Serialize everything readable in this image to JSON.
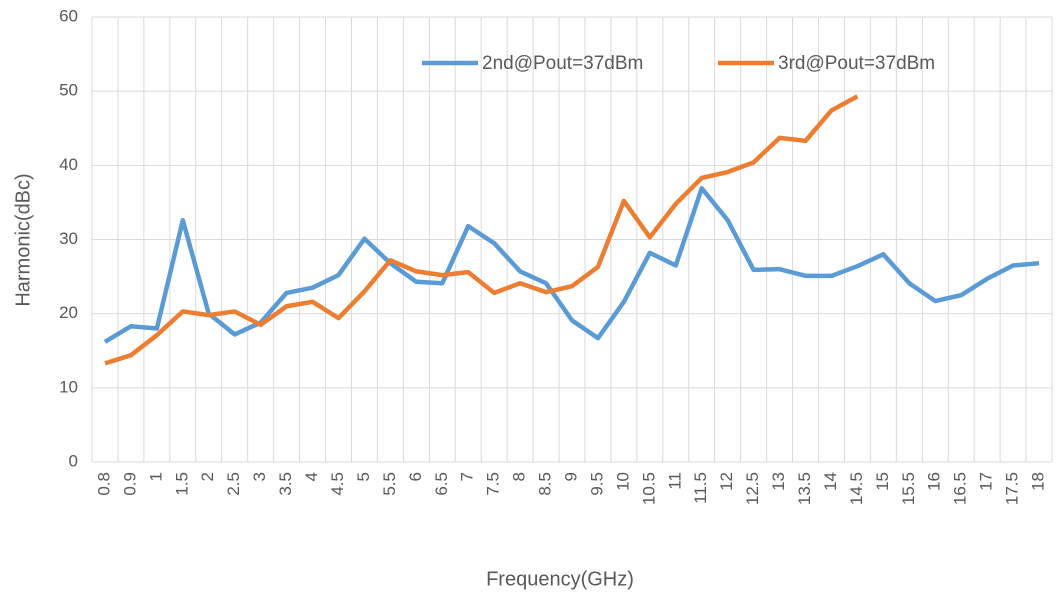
{
  "chart_data": {
    "type": "line",
    "x_label": "Frequency(GHz)",
    "y_label": "Harmonic(dBc)",
    "categories": [
      "0.8",
      "0.9",
      "1",
      "1.5",
      "2",
      "2.5",
      "3",
      "3.5",
      "4",
      "4.5",
      "5",
      "5.5",
      "6",
      "6.5",
      "7",
      "7.5",
      "8",
      "8.5",
      "9",
      "9.5",
      "10",
      "10.5",
      "11",
      "11.5",
      "12",
      "12.5",
      "13",
      "13.5",
      "14",
      "14.5",
      "15",
      "15.5",
      "16",
      "16.5",
      "17",
      "17.5",
      "18"
    ],
    "series": [
      {
        "name": "2nd@Pout=37dBm",
        "color": "#5b9bd5",
        "values": [
          16.2,
          18.3,
          18.0,
          32.6,
          20.0,
          17.2,
          18.8,
          22.8,
          23.5,
          25.2,
          30.1,
          26.8,
          24.3,
          24.1,
          31.8,
          29.5,
          25.7,
          24.1,
          19.1,
          16.7,
          21.6,
          28.2,
          26.5,
          36.9,
          32.6,
          25.9,
          26.0,
          25.1,
          25.1,
          26.4,
          28.0,
          24.1,
          21.7,
          22.5,
          24.7,
          26.5,
          26.8
        ]
      },
      {
        "name": "3rd@Pout=37dBm",
        "color": "#ed7d31",
        "values": [
          13.3,
          14.4,
          17.1,
          20.3,
          19.8,
          20.3,
          18.5,
          21.0,
          21.6,
          19.4,
          23.0,
          27.2,
          25.7,
          25.2,
          25.6,
          22.8,
          24.1,
          22.9,
          23.7,
          26.3,
          35.2,
          30.3,
          34.8,
          38.3,
          39.1,
          40.4,
          43.7,
          43.3,
          47.4,
          49.3,
          null,
          null,
          null,
          null,
          null,
          null,
          null
        ]
      }
    ],
    "ylim": [
      0,
      60
    ],
    "yticks": [
      0,
      10,
      20,
      30,
      40,
      50,
      60
    ],
    "grid": true,
    "legend": "top"
  }
}
